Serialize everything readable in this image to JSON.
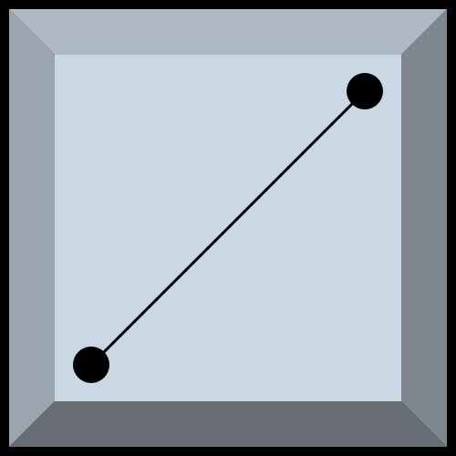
{
  "colors": {
    "background": "#000000",
    "bevel_top": "#adb8c4",
    "bevel_left": "#9aa5b0",
    "bevel_right": "#7f868d",
    "bevel_bottom": "#686d73",
    "face": "#cad8e3",
    "line": "#000000",
    "point": "#000000"
  },
  "diagram": {
    "shape": "beveled-square",
    "segment": {
      "endpoints": [
        "start-point",
        "end-point"
      ]
    }
  }
}
